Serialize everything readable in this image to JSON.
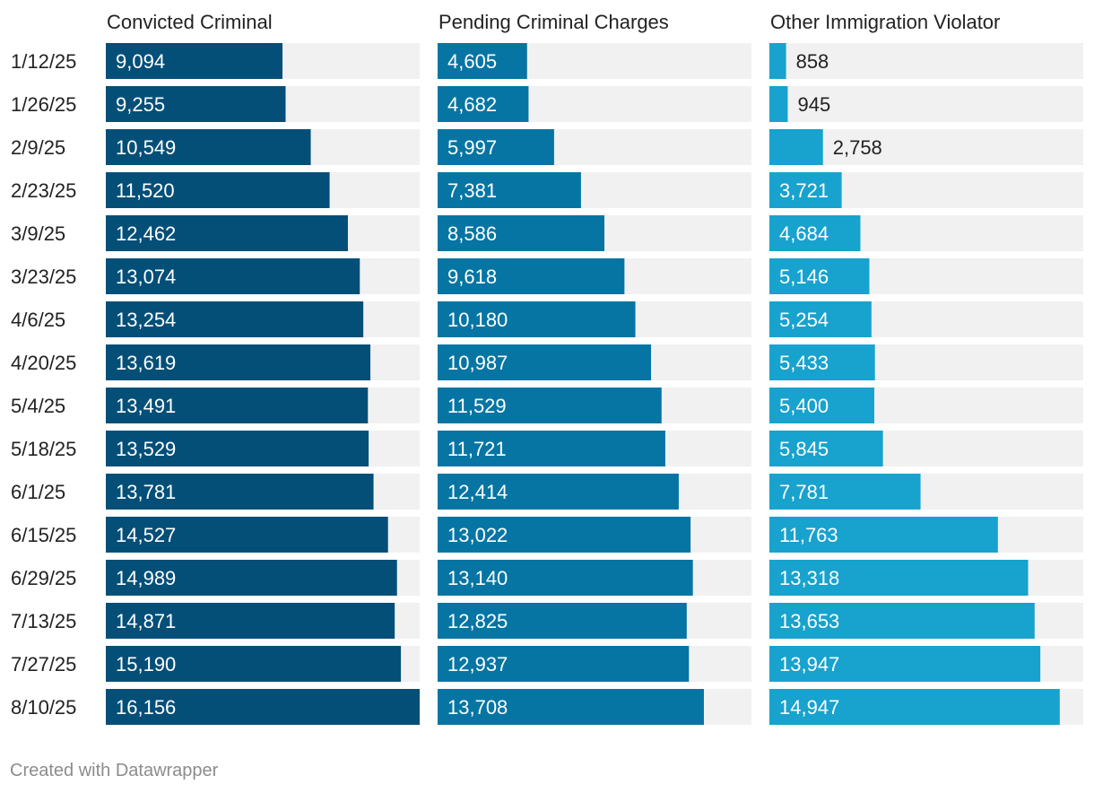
{
  "chart_data": {
    "type": "bar",
    "orientation": "horizontal",
    "layout": "small-multiples",
    "categories": [
      "1/12/25",
      "1/26/25",
      "2/9/25",
      "2/23/25",
      "3/9/25",
      "3/23/25",
      "4/6/25",
      "4/20/25",
      "5/4/25",
      "5/18/25",
      "6/1/25",
      "6/15/25",
      "6/29/25",
      "7/13/25",
      "7/27/25",
      "8/10/25"
    ],
    "series": [
      {
        "name": "Convicted Criminal",
        "color": "#044f78",
        "values": [
          9094,
          9255,
          10549,
          11520,
          12462,
          13074,
          13254,
          13619,
          13491,
          13529,
          13781,
          14527,
          14989,
          14871,
          15190,
          16156
        ]
      },
      {
        "name": "Pending Criminal Charges",
        "color": "#0675a3",
        "values": [
          4605,
          4682,
          5997,
          7381,
          8586,
          9618,
          10180,
          10987,
          11529,
          11721,
          12414,
          13022,
          13140,
          12825,
          12937,
          13708
        ]
      },
      {
        "name": "Other Immigration Violator",
        "color": "#18a2ce",
        "values": [
          858,
          945,
          2758,
          3721,
          4684,
          5146,
          5254,
          5433,
          5400,
          5845,
          7781,
          11763,
          13318,
          13653,
          13947,
          14947
        ]
      }
    ],
    "xlim": [
      0,
      16156
    ],
    "background_bar_color": "#f1f1f1"
  },
  "footer": "Created with Datawrapper"
}
